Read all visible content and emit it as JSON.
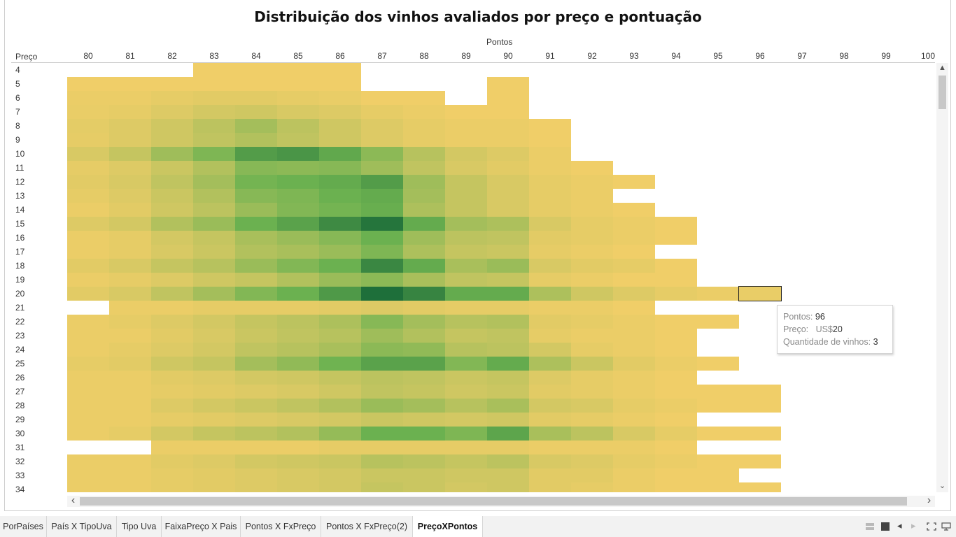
{
  "chart_data": {
    "type": "heatmap",
    "title": "Distribuição dos vinhos avaliados por preço e pontuação",
    "xlabel": "Pontos",
    "ylabel": "Preço",
    "x": [
      "80",
      "81",
      "82",
      "83",
      "84",
      "85",
      "86",
      "87",
      "88",
      "89",
      "90",
      "91",
      "92",
      "93",
      "94",
      "95",
      "96",
      "97",
      "98",
      "99",
      "100"
    ],
    "y": [
      "4",
      "5",
      "6",
      "7",
      "8",
      "9",
      "10",
      "11",
      "12",
      "13",
      "14",
      "15",
      "16",
      "17",
      "18",
      "19",
      "20",
      "21",
      "22",
      "23",
      "24",
      "25",
      "26",
      "27",
      "28",
      "29",
      "30",
      "31",
      "32",
      "33",
      "34"
    ],
    "value_label": "Quantidade de vinhos",
    "color_scale": {
      "low": "#f0ce68",
      "mid": "#6db351",
      "high": "#1e6f3a"
    },
    "value_range": [
      0,
      100
    ],
    "values": [
      [
        null,
        null,
        null,
        0,
        0,
        0,
        0,
        null,
        null,
        null,
        null,
        null,
        null,
        null,
        null,
        null,
        null,
        null,
        null,
        null,
        null
      ],
      [
        0,
        0,
        0,
        0,
        0,
        0,
        0,
        null,
        null,
        null,
        0,
        null,
        null,
        null,
        null,
        null,
        null,
        null,
        null,
        null,
        null
      ],
      [
        2,
        2,
        4,
        6,
        6,
        4,
        3,
        0,
        0,
        null,
        0,
        null,
        null,
        null,
        null,
        null,
        null,
        null,
        null,
        null,
        null
      ],
      [
        3,
        4,
        8,
        12,
        14,
        10,
        8,
        4,
        2,
        0,
        0,
        null,
        null,
        null,
        null,
        null,
        null,
        null,
        null,
        null,
        null
      ],
      [
        5,
        8,
        14,
        22,
        32,
        22,
        14,
        8,
        4,
        2,
        2,
        0,
        null,
        null,
        null,
        null,
        null,
        null,
        null,
        null,
        null
      ],
      [
        4,
        8,
        14,
        20,
        26,
        20,
        14,
        8,
        4,
        2,
        2,
        0,
        null,
        null,
        null,
        null,
        null,
        null,
        null,
        null,
        null
      ],
      [
        10,
        18,
        34,
        48,
        70,
        75,
        62,
        42,
        24,
        12,
        8,
        2,
        null,
        null,
        null,
        null,
        null,
        null,
        null,
        null,
        null
      ],
      [
        4,
        8,
        16,
        26,
        44,
        42,
        44,
        34,
        20,
        10,
        6,
        2,
        0,
        null,
        null,
        null,
        null,
        null,
        null,
        null,
        null
      ],
      [
        6,
        10,
        20,
        32,
        52,
        56,
        60,
        70,
        34,
        18,
        10,
        4,
        2,
        0,
        null,
        null,
        null,
        null,
        null,
        null,
        null
      ],
      [
        4,
        8,
        16,
        26,
        44,
        48,
        56,
        60,
        32,
        18,
        10,
        4,
        2,
        null,
        null,
        null,
        null,
        null,
        null,
        null,
        null
      ],
      [
        2,
        6,
        14,
        22,
        36,
        46,
        52,
        58,
        28,
        18,
        10,
        4,
        2,
        0,
        null,
        null,
        null,
        null,
        null,
        null,
        null
      ],
      [
        8,
        12,
        26,
        36,
        56,
        66,
        82,
        96,
        60,
        32,
        28,
        10,
        4,
        2,
        0,
        null,
        null,
        null,
        null,
        null,
        null
      ],
      [
        2,
        4,
        12,
        18,
        30,
        36,
        44,
        56,
        34,
        22,
        20,
        6,
        4,
        2,
        0,
        null,
        null,
        null,
        null,
        null,
        null
      ],
      [
        2,
        4,
        10,
        16,
        26,
        30,
        36,
        48,
        28,
        18,
        16,
        4,
        2,
        0,
        null,
        null,
        null,
        null,
        null,
        null,
        null
      ],
      [
        6,
        10,
        18,
        24,
        36,
        46,
        56,
        84,
        60,
        30,
        36,
        10,
        6,
        4,
        0,
        null,
        null,
        null,
        null,
        null,
        null
      ],
      [
        2,
        4,
        8,
        14,
        18,
        26,
        36,
        42,
        30,
        20,
        18,
        4,
        2,
        0,
        0,
        null,
        null,
        null,
        null,
        null,
        null
      ],
      [
        6,
        10,
        20,
        32,
        46,
        56,
        72,
        100,
        86,
        60,
        60,
        28,
        14,
        8,
        4,
        2,
        3,
        null,
        null,
        null,
        null
      ],
      [
        null,
        2,
        2,
        4,
        4,
        4,
        6,
        8,
        6,
        4,
        4,
        2,
        2,
        0,
        null,
        null,
        null,
        null,
        null,
        null,
        null
      ],
      [
        2,
        4,
        8,
        12,
        18,
        22,
        28,
        44,
        32,
        24,
        26,
        6,
        4,
        2,
        0,
        0,
        null,
        null,
        null,
        null,
        null
      ],
      [
        2,
        2,
        6,
        10,
        16,
        20,
        24,
        34,
        26,
        18,
        20,
        4,
        2,
        2,
        0,
        null,
        null,
        null,
        null,
        null,
        null
      ],
      [
        2,
        4,
        8,
        12,
        20,
        24,
        30,
        42,
        40,
        24,
        22,
        12,
        4,
        2,
        0,
        null,
        null,
        null,
        null,
        null,
        null
      ],
      [
        4,
        6,
        14,
        18,
        32,
        40,
        54,
        66,
        66,
        46,
        60,
        28,
        16,
        6,
        2,
        0,
        null,
        null,
        null,
        null,
        null
      ],
      [
        2,
        2,
        6,
        8,
        12,
        14,
        18,
        22,
        20,
        16,
        18,
        8,
        4,
        2,
        0,
        null,
        null,
        null,
        null,
        null,
        null
      ],
      [
        2,
        2,
        4,
        6,
        8,
        10,
        14,
        20,
        18,
        14,
        16,
        6,
        4,
        2,
        0,
        0,
        0,
        null,
        null,
        null,
        null
      ],
      [
        2,
        2,
        8,
        12,
        16,
        20,
        26,
        36,
        32,
        24,
        30,
        12,
        10,
        4,
        2,
        0,
        0,
        null,
        null,
        null,
        null
      ],
      [
        2,
        2,
        4,
        6,
        8,
        10,
        12,
        16,
        14,
        12,
        14,
        6,
        4,
        2,
        0,
        null,
        null,
        null,
        null,
        null,
        null
      ],
      [
        2,
        4,
        12,
        18,
        22,
        26,
        38,
        56,
        56,
        48,
        64,
        30,
        22,
        10,
        4,
        0,
        0,
        null,
        null,
        null,
        null
      ],
      [
        null,
        null,
        2,
        2,
        2,
        2,
        4,
        4,
        4,
        4,
        4,
        2,
        2,
        2,
        0,
        null,
        null,
        null,
        null,
        null,
        null
      ],
      [
        2,
        2,
        6,
        8,
        12,
        14,
        16,
        24,
        22,
        18,
        22,
        10,
        8,
        4,
        2,
        0,
        0,
        null,
        null,
        null,
        null
      ],
      [
        2,
        2,
        4,
        6,
        8,
        10,
        12,
        16,
        16,
        14,
        14,
        6,
        6,
        2,
        0,
        0,
        null,
        null,
        null,
        null,
        null
      ],
      [
        2,
        2,
        4,
        6,
        8,
        10,
        12,
        18,
        16,
        12,
        14,
        6,
        4,
        2,
        0,
        0,
        0,
        null,
        null,
        null,
        null
      ]
    ],
    "legend": "none",
    "grid": false
  },
  "tooltip": {
    "points_label": "Pontos:",
    "points_value": "96",
    "price_label": "Preço:",
    "price_prefix": "US$",
    "price_value": "20",
    "count_label": "Quantidade de vinhos:",
    "count_value": "3"
  },
  "selected_cell": {
    "x": "96",
    "y": "20"
  },
  "tabs": [
    {
      "label": "PorPaíses",
      "active": false
    },
    {
      "label": "País X TipoUva",
      "active": false
    },
    {
      "label": "Tipo Uva",
      "active": false
    },
    {
      "label": "FaixaPreço X Pais",
      "active": false
    },
    {
      "label": "Pontos X FxPreço",
      "active": false
    },
    {
      "label": "Pontos X FxPreço(2)",
      "active": false
    },
    {
      "label": "PreçoXPontos",
      "active": true
    }
  ],
  "scroll": {
    "up_arrow": "▲",
    "down_arrow": "⌄",
    "left_arrow": "‹",
    "right_arrow": "›"
  },
  "controls": {
    "prev_icon": "◂",
    "next_icon": "▸"
  }
}
